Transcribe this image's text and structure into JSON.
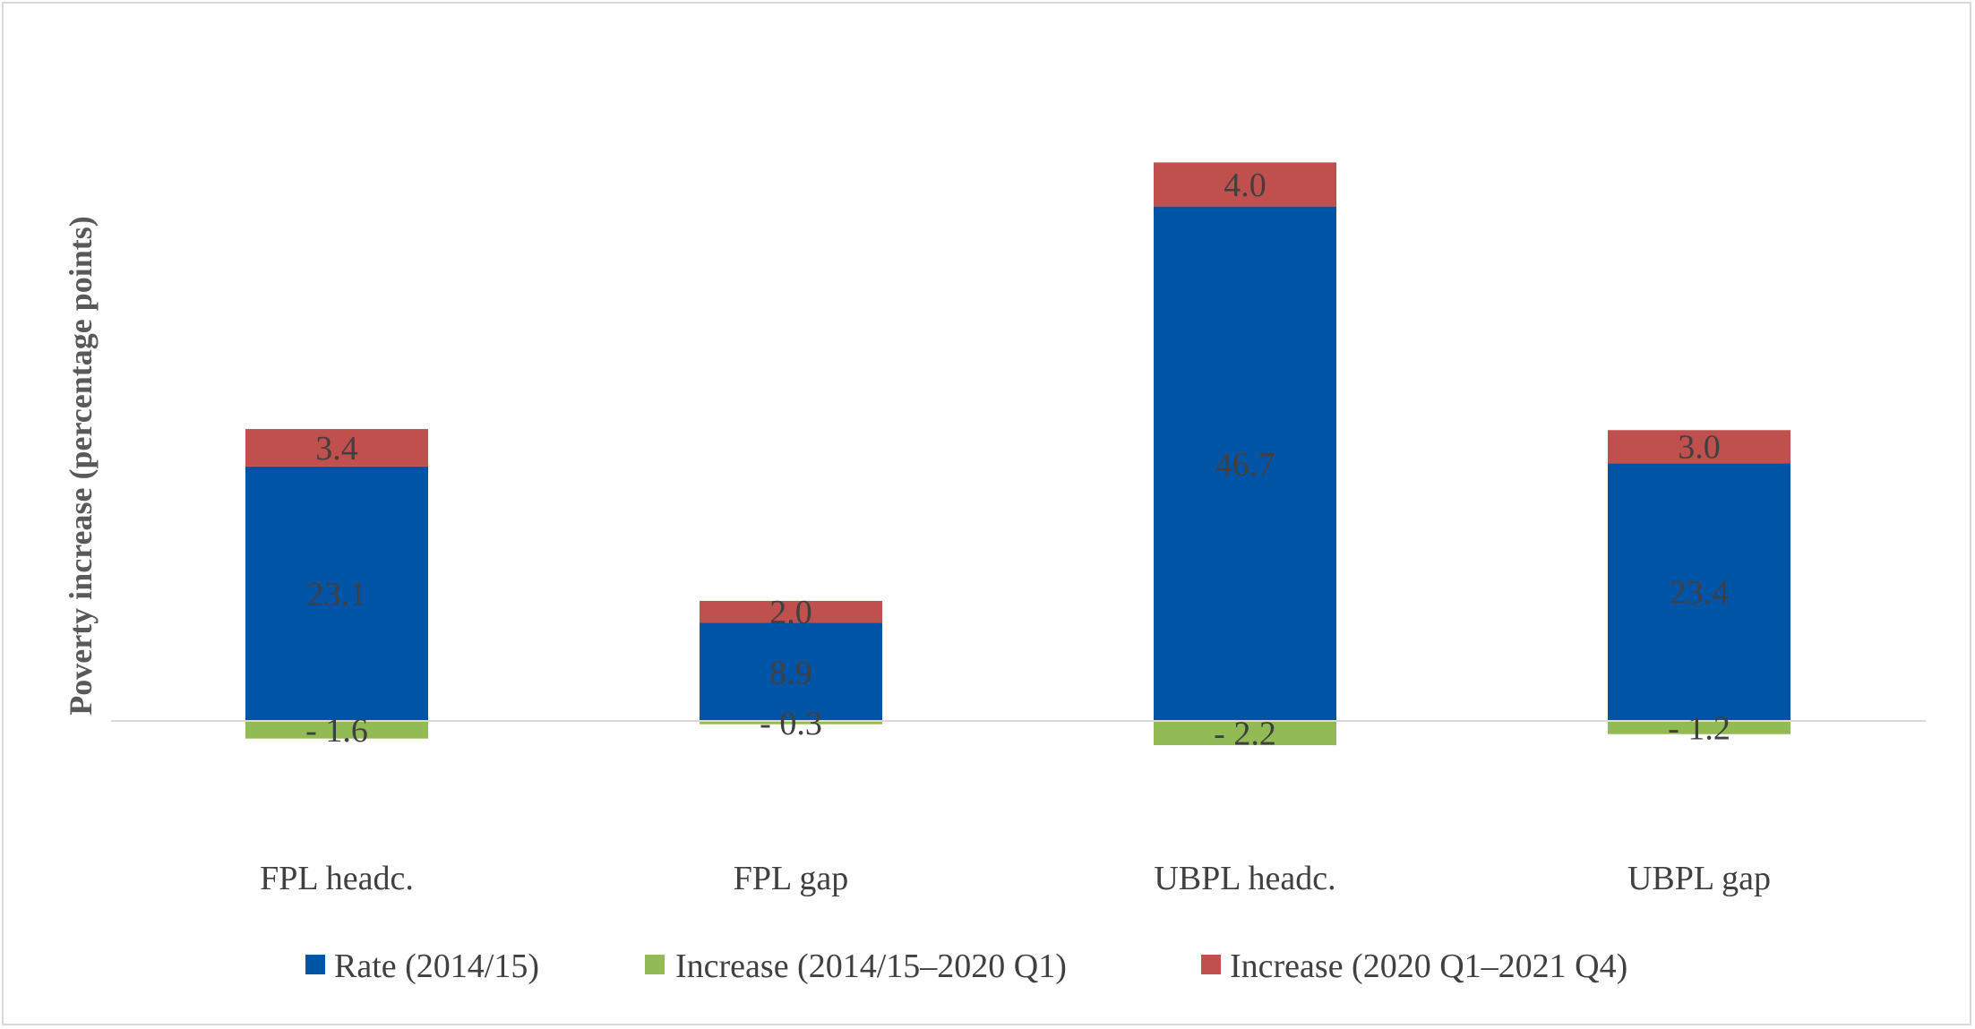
{
  "chart_data": {
    "type": "bar",
    "stacked": true,
    "title": "",
    "xlabel": "",
    "ylabel": "Poverty increase (percentage points)",
    "categories": [
      "FPL headc.",
      "FPL gap",
      "UBPL headc.",
      "UBPL gap"
    ],
    "series": [
      {
        "name": "Rate (2014/15)",
        "values": [
          23.1,
          8.9,
          46.7,
          23.4
        ],
        "labels": [
          "23.1",
          "8.9",
          "46.7",
          "23.4"
        ],
        "color": "#0054a6"
      },
      {
        "name": "Increase (2014/15–2020 Q1)",
        "values": [
          -1.6,
          -0.3,
          -2.2,
          -1.2
        ],
        "labels": [
          "- 1.6",
          "- 0.3",
          "- 2.2",
          "- 1.2"
        ],
        "color": "#92bb55"
      },
      {
        "name": "Increase (2020 Q1–2021 Q4)",
        "values": [
          3.4,
          2.0,
          4.0,
          3.0
        ],
        "labels": [
          "3.4",
          "2.0",
          "4.0",
          "3.0"
        ],
        "color": "#c0504d"
      }
    ],
    "ylim": [
      -10,
      55
    ],
    "grid": false,
    "axis_line_color": "#d9d9d9",
    "legend_position": "bottom"
  }
}
